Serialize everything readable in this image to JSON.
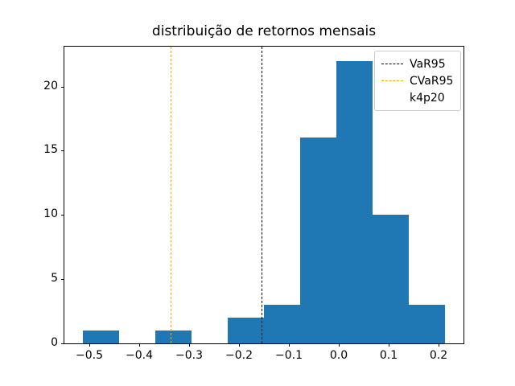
{
  "figure": {
    "background": "#ffffff"
  },
  "chart_data": {
    "type": "bar",
    "subtype": "histogram",
    "title": "distribuição de retornos mensais",
    "xlabel": "",
    "ylabel": "",
    "bar_color": "#1f77b4",
    "grid": false,
    "bin_edges": [
      -0.5134,
      -0.4407,
      -0.368,
      -0.2953,
      -0.2226,
      -0.1499,
      -0.0772,
      -0.0045,
      0.0682,
      0.1409,
      0.2136
    ],
    "counts": [
      1,
      0,
      1,
      0,
      2,
      3,
      16,
      22,
      10,
      3
    ],
    "xlim": [
      -0.55,
      0.25
    ],
    "ylim": [
      0,
      23.1
    ],
    "xticks": {
      "values": [
        -0.5,
        -0.4,
        -0.3,
        -0.2,
        -0.1,
        0.0,
        0.1,
        0.2
      ],
      "labels": [
        "−0.5",
        "−0.4",
        "−0.3",
        "−0.2",
        "−0.1",
        "0.0",
        "0.1",
        "0.2"
      ]
    },
    "yticks": {
      "values": [
        0,
        5,
        10,
        15,
        20
      ],
      "labels": [
        "0",
        "5",
        "10",
        "15",
        "20"
      ]
    },
    "vlines": [
      {
        "name": "VaR95",
        "x": -0.153,
        "color": "#000000",
        "style": "dashed"
      },
      {
        "name": "CVaR95",
        "x": -0.335,
        "color": "#ffa500",
        "style": "dashed"
      }
    ],
    "legend": {
      "position": "upper-right",
      "entries": [
        {
          "label": "VaR95",
          "handle_color": "#000000",
          "handle_dash": true
        },
        {
          "label": "CVaR95",
          "handle_color": "#ffa500",
          "handle_dash": true
        },
        {
          "label": "k4p20",
          "handle_color": null,
          "handle_dash": false
        }
      ]
    }
  }
}
